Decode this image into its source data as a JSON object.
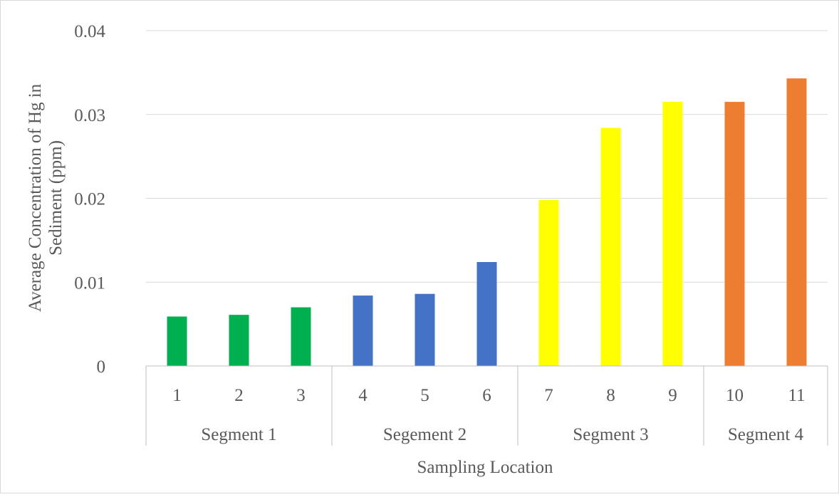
{
  "chart_data": {
    "type": "bar",
    "title": "",
    "xlabel": "Sampling Location",
    "ylabel": "Average Concentration of Hg in Sediment (ppm)",
    "ylabel_lines": [
      "Average Concentration of Hg in",
      "Sediment (ppm)"
    ],
    "ylim": [
      0,
      0.04
    ],
    "yticks": [
      0,
      0.01,
      0.02,
      0.03,
      0.04
    ],
    "ytick_labels": [
      "0",
      "0.01",
      "0.02",
      "0.03",
      "0.04"
    ],
    "grid": true,
    "legend": "none",
    "categories": [
      "1",
      "2",
      "3",
      "4",
      "5",
      "6",
      "7",
      "8",
      "9",
      "10",
      "11"
    ],
    "values": [
      0.0059,
      0.0061,
      0.007,
      0.0084,
      0.0086,
      0.0124,
      0.0198,
      0.0284,
      0.0315,
      0.0315,
      0.0343
    ],
    "groups": [
      {
        "label": "Segment 1",
        "categories": [
          "1",
          "2",
          "3"
        ],
        "color": "#00b050"
      },
      {
        "label": "Segement 2",
        "categories": [
          "4",
          "5",
          "6"
        ],
        "color": "#4472c4"
      },
      {
        "label": "Segment 3",
        "categories": [
          "7",
          "8",
          "9"
        ],
        "color": "#ffff00"
      },
      {
        "label": "Segment 4",
        "categories": [
          "10",
          "11"
        ],
        "color": "#ed7d31"
      }
    ]
  },
  "colors": {
    "gridline": "#d9d9d9",
    "axis_line": "#bfbfbf",
    "text": "#595959",
    "border": "#d9d9d9"
  }
}
